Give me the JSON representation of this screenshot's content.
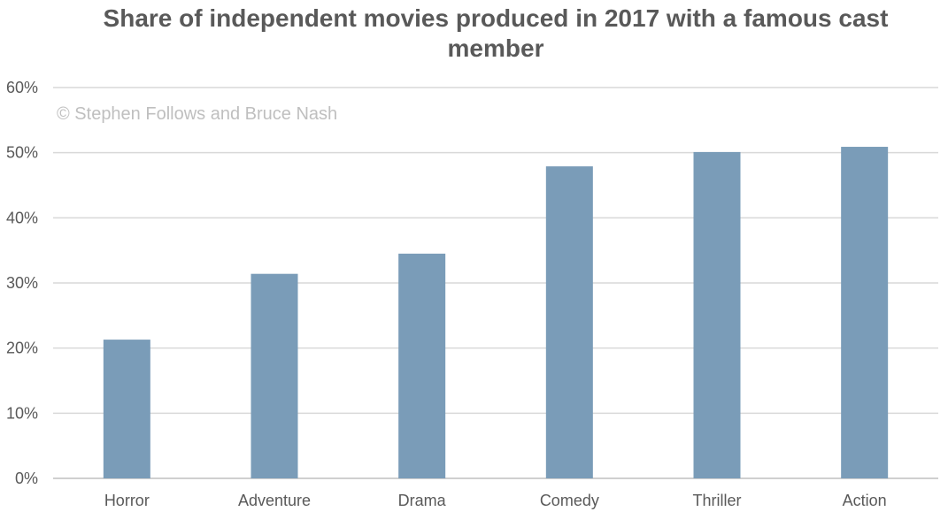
{
  "chart_data": {
    "type": "bar",
    "title": "Share of independent movies produced in 2017 with a famous cast member",
    "xlabel": "",
    "ylabel": "",
    "categories": [
      "Horror",
      "Adventure",
      "Drama",
      "Comedy",
      "Thriller",
      "Action"
    ],
    "values": [
      21.3,
      31.4,
      34.5,
      47.9,
      50.1,
      50.9
    ],
    "ylim": [
      0,
      60
    ],
    "yticks": [
      "0%",
      "10%",
      "20%",
      "30%",
      "40%",
      "50%",
      "60%"
    ],
    "grid": true,
    "legend": "none",
    "bar_color": "#7a9cb8",
    "annotation": "© Stephen Follows and Bruce Nash"
  }
}
